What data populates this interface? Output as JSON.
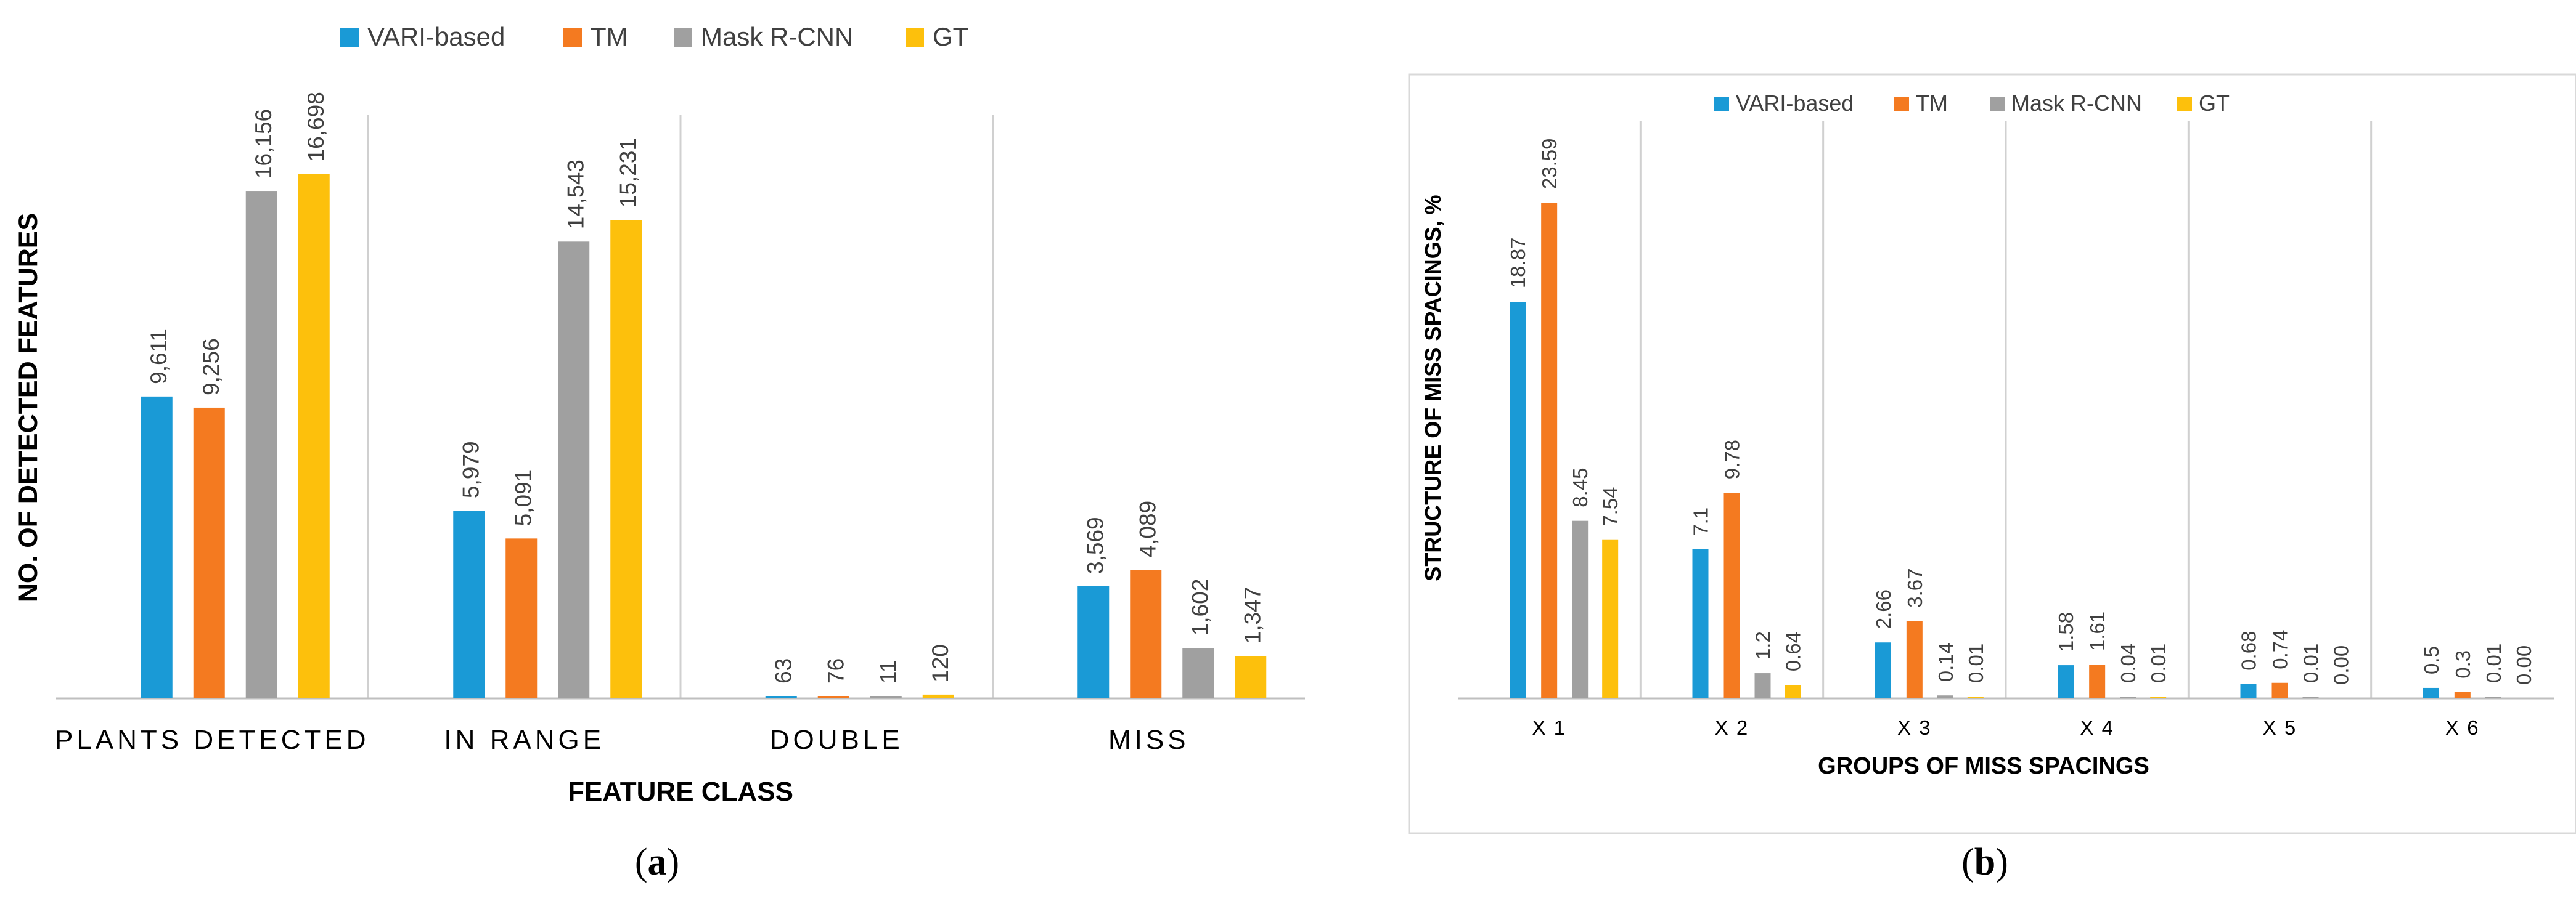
{
  "colors": {
    "series": [
      "#1a9ad6",
      "#f47a20",
      "#a0a0a0",
      "#fdc00c"
    ],
    "grid": "#d0d0d0",
    "axis": "#bfbfbf",
    "label": "#404040",
    "text": "#000000"
  },
  "chart_data": [
    {
      "type": "bar",
      "panel_caption": "(a)",
      "caption_letter": "a",
      "xlabel": "FEATURE CLASS",
      "ylabel": "NO. OF DETECTED FEATURES",
      "ylim": [
        0,
        18000
      ],
      "legend_position": "top",
      "categories": [
        "PLANTS DETECTED",
        "IN RANGE",
        "DOUBLE",
        "MISS"
      ],
      "series": [
        {
          "name": "VARI-based",
          "values": [
            9611,
            5979,
            63,
            3569
          ],
          "labels": [
            "9,611",
            "5,979",
            "63",
            "3,569"
          ]
        },
        {
          "name": "TM",
          "values": [
            9256,
            5091,
            76,
            4089
          ],
          "labels": [
            "9,256",
            "5,091",
            "76",
            "4,089"
          ]
        },
        {
          "name": "Mask R-CNN",
          "values": [
            16156,
            14543,
            11,
            1602
          ],
          "labels": [
            "16,156",
            "14,543",
            "11",
            "1,602"
          ]
        },
        {
          "name": "GT",
          "values": [
            16698,
            15231,
            120,
            1347
          ],
          "labels": [
            "16,698",
            "15,231",
            "120",
            "1,347"
          ]
        }
      ]
    },
    {
      "type": "bar",
      "panel_caption": "(b)",
      "caption_letter": "b",
      "xlabel": "GROUPS OF MISS SPACINGS",
      "ylabel": "STRUCTURE OF MISS SPACINGS, %",
      "ylim": [
        0,
        25
      ],
      "legend_position": "top",
      "categories": [
        "X 1",
        "X 2",
        "X 3",
        "X 4",
        "X 5",
        "X 6"
      ],
      "series": [
        {
          "name": "VARI-based",
          "values": [
            18.87,
            7.1,
            2.66,
            1.58,
            0.68,
            0.5
          ],
          "labels": [
            "18.87",
            "7.1",
            "2.66",
            "1.58",
            "0.68",
            "0.5"
          ]
        },
        {
          "name": "TM",
          "values": [
            23.59,
            9.78,
            3.67,
            1.61,
            0.74,
            0.3
          ],
          "labels": [
            "23.59",
            "9.78",
            "3.67",
            "1.61",
            "0.74",
            "0.3"
          ]
        },
        {
          "name": "Mask R-CNN",
          "values": [
            8.45,
            1.2,
            0.14,
            0.04,
            0.01,
            0.01
          ],
          "labels": [
            "8.45",
            "1.2",
            "0.14",
            "0.04",
            "0.01",
            "0.01"
          ]
        },
        {
          "name": "GT",
          "values": [
            7.54,
            0.64,
            0.01,
            0.01,
            0.0,
            0.0
          ],
          "labels": [
            "7.54",
            "0.64",
            "0.01",
            "0.01",
            "0.00",
            "0.00"
          ]
        }
      ]
    }
  ]
}
